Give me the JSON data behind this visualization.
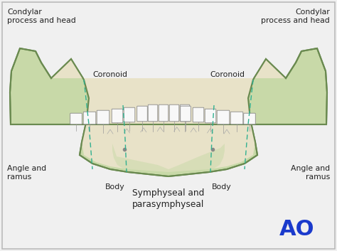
{
  "background_color": "#f0f0f0",
  "border_color": "#aaaaaa",
  "mandible_fill": "#c8d9a8",
  "mandible_edge": "#6a8a50",
  "inner_fill": "#e8e2c8",
  "inner_fill2": "#d8d4b8",
  "symphyseal_fill": "#c8d9a8",
  "teeth_fill": "#f8f8f8",
  "teeth_edge": "#888888",
  "dashed_line_color": "#30b090",
  "text_color": "#222222",
  "ao_color": "#1a3acc",
  "labels": {
    "condylar_left": "Condylar\nprocess and head",
    "condylar_right": "Condylar\nprocess and head",
    "coronoid_left": "Coronoid",
    "coronoid_right": "Coronoid",
    "angle_left": "Angle and\nramus",
    "angle_right": "Angle and\nramus",
    "body_left": "Body",
    "body_right": "Body",
    "symphyseal": "Symphyseal and\nparasymphyseal",
    "ao": "AO"
  },
  "figsize": [
    4.74,
    3.53
  ],
  "dpi": 100
}
